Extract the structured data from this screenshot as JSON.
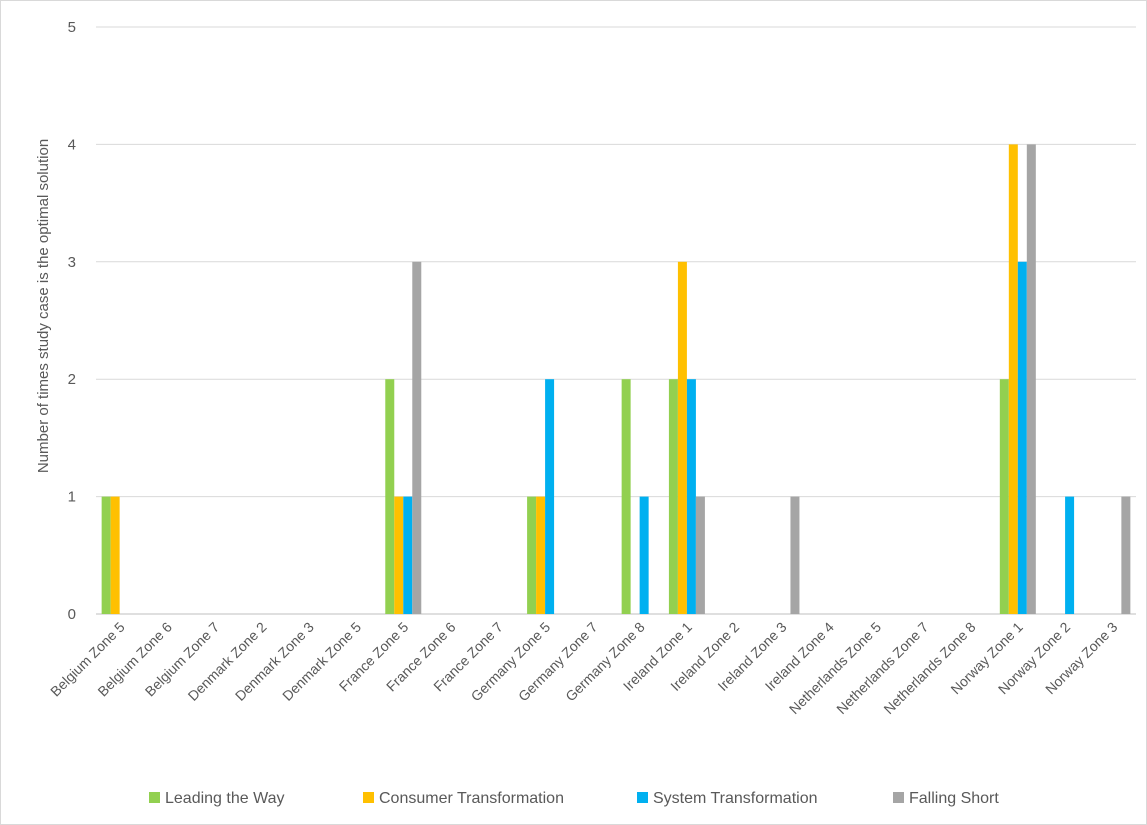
{
  "chart_data": {
    "type": "bar",
    "ylabel": "Number of times study case is the optimal solution",
    "xlabel": "",
    "ylim": [
      0,
      5
    ],
    "yticks": [
      0,
      1,
      2,
      3,
      4,
      5
    ],
    "grid": true,
    "legend_position": "bottom",
    "categories": [
      "Belgium Zone 5",
      "Belgium Zone 6",
      "Belgium Zone 7",
      "Denmark Zone 2",
      "Denmark Zone 3",
      "Denmark Zone 5",
      "France Zone 5",
      "France Zone 6",
      "France Zone 7",
      "Germany Zone 5",
      "Germany Zone 7",
      "Germany Zone 8",
      "Ireland Zone 1",
      "Ireland Zone 2",
      "Ireland Zone 3",
      "Ireland Zone 4",
      "Netherlands Zone 5",
      "Netherlands Zone 7",
      "Netherlands Zone 8",
      "Norway Zone 1",
      "Norway Zone 2",
      "Norway Zone 3"
    ],
    "series": [
      {
        "name": "Leading the Way",
        "color": "#92d050",
        "values": [
          1,
          0,
          0,
          0,
          0,
          0,
          2,
          0,
          0,
          1,
          0,
          2,
          2,
          0,
          0,
          0,
          0,
          0,
          0,
          2,
          0,
          0
        ]
      },
      {
        "name": "Consumer Transformation",
        "color": "#ffc000",
        "values": [
          1,
          0,
          0,
          0,
          0,
          0,
          1,
          0,
          0,
          1,
          0,
          0,
          3,
          0,
          0,
          0,
          0,
          0,
          0,
          4,
          0,
          0
        ]
      },
      {
        "name": "System Transformation",
        "color": "#00b0f0",
        "values": [
          0,
          0,
          0,
          0,
          0,
          0,
          1,
          0,
          0,
          2,
          0,
          1,
          2,
          0,
          0,
          0,
          0,
          0,
          0,
          3,
          1,
          0
        ]
      },
      {
        "name": "Falling Short",
        "color": "#a5a5a5",
        "values": [
          0,
          0,
          0,
          0,
          0,
          0,
          3,
          0,
          0,
          0,
          0,
          0,
          1,
          0,
          1,
          0,
          0,
          0,
          0,
          4,
          0,
          1
        ]
      }
    ]
  }
}
